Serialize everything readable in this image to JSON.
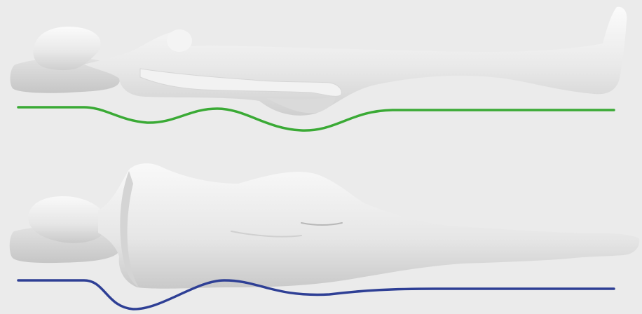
{
  "panels": [
    {
      "pose": "supine",
      "curve_color": "#3aaa35"
    },
    {
      "pose": "side-lying",
      "curve_color": "#2e3f95"
    }
  ],
  "colors": {
    "background": "#ebebeb",
    "figure_light": "#f7f7f7",
    "figure_mid": "#dcdcdc",
    "figure_shadow": "#c4c4c4",
    "pillow": "#d9d9d9"
  }
}
